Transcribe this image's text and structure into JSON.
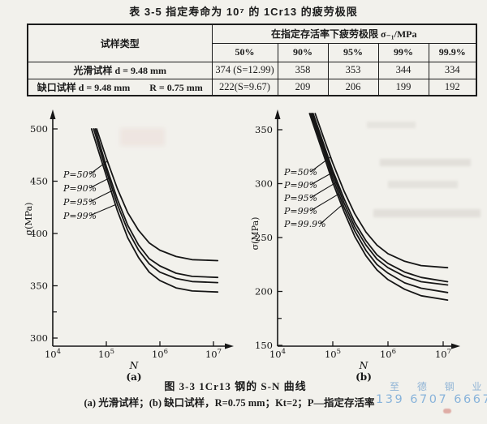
{
  "page": {
    "title": "表 3-5  指定寿命为 10⁷ 的 1Cr13 的疲劳极限"
  },
  "table": {
    "col1_header": "试样类型",
    "group_header": "在指定存活率下疲劳极限 σ₋₁/MPa",
    "sub_headers": [
      "50%",
      "90%",
      "95%",
      "99%",
      "99.9%"
    ],
    "rows": [
      {
        "type": "光滑试样 d = 9.48 mm",
        "values": [
          "374 (S=12.99)",
          "358",
          "353",
          "344",
          "334"
        ]
      },
      {
        "type": "缺口试样 d = 9.48 mm　　R = 0.75 mm",
        "values": [
          "222(S=9.67)",
          "209",
          "206",
          "199",
          "192"
        ]
      }
    ]
  },
  "caption": {
    "line1": "图 3-3  1Cr13 钢的 S-N 曲线",
    "line2": "(a) 光滑试样；(b) 缺口试样，R=0.75 mm；Kt=2；P—指定存活率"
  },
  "watermark": {
    "line1": "至 德 钢 业",
    "line2": "139 6707 6667",
    "color": "#7ea9d2"
  },
  "chart_data": [
    {
      "type": "line",
      "title": "(a)",
      "xlabel": "N",
      "ylabel": "σ(MPa)",
      "x_scale": "log",
      "x_ticks": [
        10000,
        100000,
        1000000,
        10000000
      ],
      "x_tick_labels": [
        "10^4",
        "10^5",
        "10^6",
        "10^7"
      ],
      "y_ticks": [
        300,
        350,
        400,
        450,
        500
      ],
      "y_minor_ticks": [
        325
      ],
      "ylim": [
        300,
        510
      ],
      "grid": false,
      "legend_position": "on-plot-left",
      "series": [
        {
          "name": "P=50%",
          "fatigue_limit": 374,
          "points": [
            [
              66000,
              500
            ],
            [
              100000,
              472
            ],
            [
              160000,
              443
            ],
            [
              250000,
              420
            ],
            [
              400000,
              403
            ],
            [
              630000,
              391
            ],
            [
              1000000,
              384
            ],
            [
              2000000,
              378
            ],
            [
              4000000,
              375
            ],
            [
              12000000,
              374
            ]
          ]
        },
        {
          "name": "P=90%",
          "fatigue_limit": 358,
          "points": [
            [
              62000,
              500
            ],
            [
              100000,
              464
            ],
            [
              160000,
              433
            ],
            [
              250000,
              408
            ],
            [
              400000,
              389
            ],
            [
              630000,
              376
            ],
            [
              1000000,
              369
            ],
            [
              2000000,
              362
            ],
            [
              4000000,
              359
            ],
            [
              12000000,
              358
            ]
          ]
        },
        {
          "name": "P=95%",
          "fatigue_limit": 353,
          "points": [
            [
              58000,
              500
            ],
            [
              100000,
              460
            ],
            [
              160000,
              428
            ],
            [
              250000,
              403
            ],
            [
              400000,
              384
            ],
            [
              630000,
              371
            ],
            [
              1000000,
              363
            ],
            [
              2000000,
              357
            ],
            [
              4000000,
              354
            ],
            [
              12000000,
              353
            ]
          ]
        },
        {
          "name": "P=99%",
          "fatigue_limit": 344,
          "points": [
            [
              53000,
              500
            ],
            [
              100000,
              455
            ],
            [
              160000,
              422
            ],
            [
              250000,
              396
            ],
            [
              400000,
              377
            ],
            [
              630000,
              363
            ],
            [
              1000000,
              355
            ],
            [
              2000000,
              348
            ],
            [
              4000000,
              345
            ],
            [
              12000000,
              344
            ]
          ]
        }
      ]
    },
    {
      "type": "line",
      "title": "(b)",
      "xlabel": "N",
      "ylabel": "σ(MPa)",
      "x_scale": "log",
      "x_ticks": [
        10000,
        100000,
        1000000,
        10000000
      ],
      "x_tick_labels": [
        "10^4",
        "10^5",
        "10^6",
        "10^7"
      ],
      "y_ticks": [
        150,
        200,
        250,
        300,
        350
      ],
      "y_minor_ticks": [
        175
      ],
      "ylim": [
        150,
        365
      ],
      "grid": false,
      "legend_position": "on-plot-left",
      "series": [
        {
          "name": "P=50%",
          "fatigue_limit": 222,
          "points": [
            [
              48000,
              365
            ],
            [
              70000,
              341
            ],
            [
              100000,
              319
            ],
            [
              160000,
              293
            ],
            [
              250000,
              272
            ],
            [
              400000,
              255
            ],
            [
              630000,
              243
            ],
            [
              1000000,
              235
            ],
            [
              2000000,
              228
            ],
            [
              4000000,
              224
            ],
            [
              12000000,
              222
            ]
          ]
        },
        {
          "name": "P=90%",
          "fatigue_limit": 209,
          "points": [
            [
              44000,
              365
            ],
            [
              70000,
              335
            ],
            [
              100000,
              312
            ],
            [
              160000,
              286
            ],
            [
              250000,
              264
            ],
            [
              400000,
              247
            ],
            [
              630000,
              234
            ],
            [
              1000000,
              226
            ],
            [
              2000000,
              218
            ],
            [
              4000000,
              213
            ],
            [
              12000000,
              209
            ]
          ]
        },
        {
          "name": "P=95%",
          "fatigue_limit": 206,
          "points": [
            [
              42000,
              365
            ],
            [
              70000,
              332
            ],
            [
              100000,
              309
            ],
            [
              160000,
              282
            ],
            [
              250000,
              260
            ],
            [
              400000,
              243
            ],
            [
              630000,
              230
            ],
            [
              1000000,
              222
            ],
            [
              2000000,
              214
            ],
            [
              4000000,
              209
            ],
            [
              12000000,
              206
            ]
          ]
        },
        {
          "name": "P=99%",
          "fatigue_limit": 199,
          "points": [
            [
              40000,
              365
            ],
            [
              70000,
              329
            ],
            [
              100000,
              305
            ],
            [
              160000,
              278
            ],
            [
              250000,
              256
            ],
            [
              400000,
              238
            ],
            [
              630000,
              225
            ],
            [
              1000000,
              217
            ],
            [
              2000000,
              208
            ],
            [
              4000000,
              203
            ],
            [
              12000000,
              199
            ]
          ]
        },
        {
          "name": "P=99.9%",
          "fatigue_limit": 192,
          "points": [
            [
              38000,
              365
            ],
            [
              70000,
              325
            ],
            [
              100000,
              301
            ],
            [
              160000,
              274
            ],
            [
              250000,
              251
            ],
            [
              400000,
              233
            ],
            [
              630000,
              220
            ],
            [
              1000000,
              211
            ],
            [
              2000000,
              202
            ],
            [
              4000000,
              196
            ],
            [
              12000000,
              192
            ]
          ]
        }
      ]
    }
  ]
}
